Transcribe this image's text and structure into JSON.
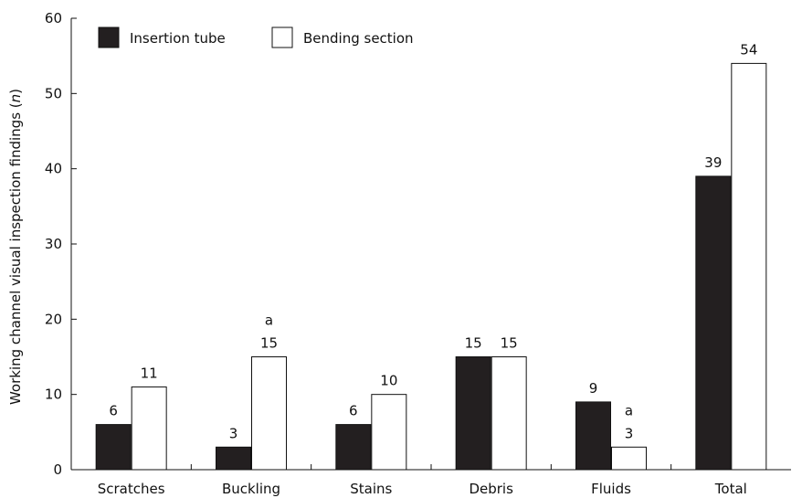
{
  "chart_data": {
    "type": "bar",
    "categories": [
      "Scratches",
      "Buckling",
      "Stains",
      "Debris",
      "Fluids",
      "Total"
    ],
    "series": [
      {
        "name": "Insertion tube",
        "values": [
          6,
          3,
          6,
          15,
          9,
          39
        ],
        "color": "#231f20"
      },
      {
        "name": "Bending section",
        "values": [
          11,
          15,
          10,
          15,
          3,
          54
        ],
        "color": "#ffffff"
      }
    ],
    "annotations": [
      {
        "series": 1,
        "category": "Buckling",
        "text": "a"
      },
      {
        "series": 1,
        "category": "Fluids",
        "text": "a"
      }
    ],
    "xlabel": "",
    "ylabel": "Working channel visual inspection findings (n)",
    "ylabel_main": "Working channel visual inspection findings (",
    "ylabel_italic": "n",
    "ylabel_end": ")",
    "ylim": [
      0,
      60
    ],
    "yticks": [
      0,
      10,
      20,
      30,
      40,
      50,
      60
    ],
    "legend_position": "top-left",
    "grid": false
  }
}
